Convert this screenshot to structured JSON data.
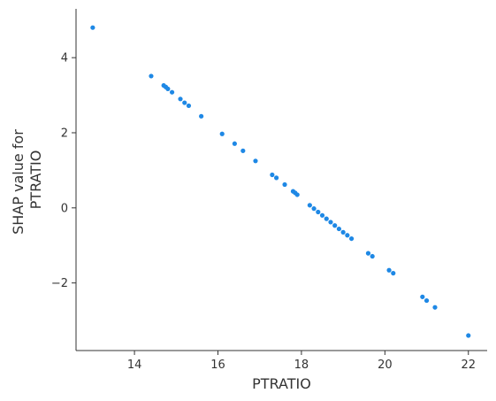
{
  "chart_data": {
    "type": "scatter",
    "xlabel": "PTRATIO",
    "ylabel_lines": [
      "SHAP value for",
      "PTRATIO"
    ],
    "xlim": [
      12.6,
      22.45
    ],
    "ylim": [
      -3.8,
      5.3
    ],
    "xticks": [
      14,
      16,
      18,
      20,
      22
    ],
    "yticks": [
      -2,
      0,
      2,
      4
    ],
    "ytick_labels": [
      "−2",
      "0",
      "2",
      "4"
    ],
    "point_color": "#1e88e5",
    "grid": false,
    "points": [
      {
        "x": 13.0,
        "y": 4.8
      },
      {
        "x": 14.4,
        "y": 3.51
      },
      {
        "x": 14.7,
        "y": 3.26
      },
      {
        "x": 14.75,
        "y": 3.22
      },
      {
        "x": 14.8,
        "y": 3.17
      },
      {
        "x": 14.9,
        "y": 3.08
      },
      {
        "x": 15.1,
        "y": 2.9
      },
      {
        "x": 15.2,
        "y": 2.8
      },
      {
        "x": 15.3,
        "y": 2.72
      },
      {
        "x": 15.6,
        "y": 2.44
      },
      {
        "x": 16.1,
        "y": 1.97
      },
      {
        "x": 16.4,
        "y": 1.71
      },
      {
        "x": 16.6,
        "y": 1.52
      },
      {
        "x": 16.9,
        "y": 1.25
      },
      {
        "x": 17.3,
        "y": 0.88
      },
      {
        "x": 17.4,
        "y": 0.8
      },
      {
        "x": 17.6,
        "y": 0.62
      },
      {
        "x": 17.8,
        "y": 0.44
      },
      {
        "x": 17.85,
        "y": 0.4
      },
      {
        "x": 17.9,
        "y": 0.35
      },
      {
        "x": 18.2,
        "y": 0.07
      },
      {
        "x": 18.3,
        "y": -0.02
      },
      {
        "x": 18.4,
        "y": -0.11
      },
      {
        "x": 18.5,
        "y": -0.2
      },
      {
        "x": 18.6,
        "y": -0.29
      },
      {
        "x": 18.7,
        "y": -0.38
      },
      {
        "x": 18.8,
        "y": -0.47
      },
      {
        "x": 18.9,
        "y": -0.56
      },
      {
        "x": 19.0,
        "y": -0.65
      },
      {
        "x": 19.1,
        "y": -0.73
      },
      {
        "x": 19.2,
        "y": -0.82
      },
      {
        "x": 19.6,
        "y": -1.21
      },
      {
        "x": 19.7,
        "y": -1.29
      },
      {
        "x": 20.1,
        "y": -1.66
      },
      {
        "x": 20.2,
        "y": -1.74
      },
      {
        "x": 20.9,
        "y": -2.37
      },
      {
        "x": 21.0,
        "y": -2.47
      },
      {
        "x": 21.2,
        "y": -2.65
      },
      {
        "x": 22.0,
        "y": -3.4
      }
    ]
  }
}
